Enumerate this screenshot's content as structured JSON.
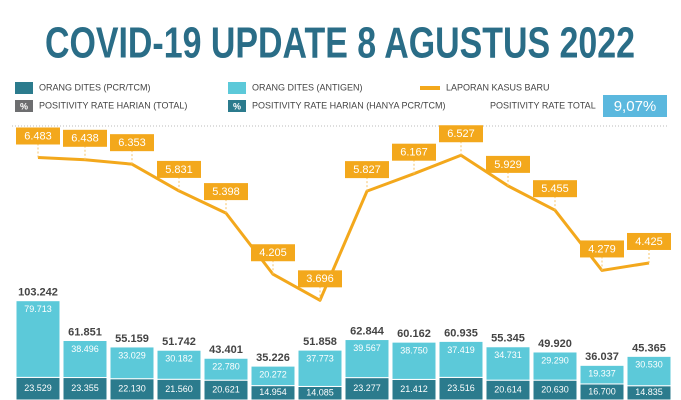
{
  "chart_data": {
    "type": "stacked-bar-line",
    "title": "COVID-19 UPDATE 8 AGUSTUS 2022",
    "series": [
      {
        "name": "ORANG DITES (PCR/TCM)",
        "color": "#2b7b8d",
        "values": [
          23529,
          23355,
          22130,
          21560,
          20621,
          14954,
          14085,
          23277,
          21412,
          23516,
          20614,
          20630,
          16700,
          14835
        ],
        "value_labels": [
          "23.529",
          "23.355",
          "22.130",
          "21.560",
          "20.621",
          "14.954",
          "14.085",
          "23.277",
          "21.412",
          "23.516",
          "20.614",
          "20.630",
          "16.700",
          "14.835"
        ]
      },
      {
        "name": "ORANG DITES (ANTIGEN)",
        "color": "#5cc9d9",
        "values": [
          79713,
          38496,
          33029,
          30182,
          22780,
          20272,
          37773,
          39567,
          38750,
          37419,
          34731,
          29290,
          19337,
          30530
        ],
        "value_labels": [
          "79.713",
          "38.496",
          "33.029",
          "30.182",
          "22.780",
          "20.272",
          "37.773",
          "39.567",
          "38.750",
          "37.419",
          "34.731",
          "29.290",
          "19.337",
          "30.530"
        ]
      },
      {
        "name": "LAPORAN KASUS BARU",
        "color": "#f3a81c",
        "type": "line",
        "axis": "y2",
        "values": [
          6483,
          6438,
          6353,
          5831,
          5398,
          4205,
          3696,
          5827,
          6167,
          6527,
          5929,
          5455,
          4279,
          4425
        ],
        "value_labels": [
          "6.483",
          "6.438",
          "6.353",
          "5.831",
          "5.398",
          "4.205",
          "3.696",
          "5.827",
          "6.167",
          "6.527",
          "5.929",
          "5.455",
          "4.279",
          "4.425"
        ]
      }
    ],
    "totals": {
      "values": [
        103242,
        61851,
        55159,
        51742,
        43401,
        35226,
        51858,
        62844,
        60162,
        60935,
        55345,
        49920,
        36037,
        45365
      ],
      "value_labels": [
        "103.242",
        "61.851",
        "55.159",
        "51.742",
        "43.401",
        "35.226",
        "51.858",
        "62.844",
        "60.162",
        "60.935",
        "55.345",
        "49.920",
        "36.037",
        "45.365"
      ]
    },
    "extra_legend": [
      {
        "name": "POSITIVITY RATE HARIAN (TOTAL)",
        "icon": "%",
        "color": "#6d6e70"
      },
      {
        "name": "POSITIVITY RATE HARIAN (HANYA PCR/TCM)",
        "icon": "%",
        "color": "#2b7b8d"
      }
    ],
    "positivity_rate_total": {
      "name": "POSITIVITY RATE TOTAL",
      "value": 9.07,
      "value_label": "9,07%",
      "color": "#5bb8de"
    },
    "ylim": [
      0,
      105000
    ],
    "y2lim": [
      3000,
      7000
    ]
  }
}
